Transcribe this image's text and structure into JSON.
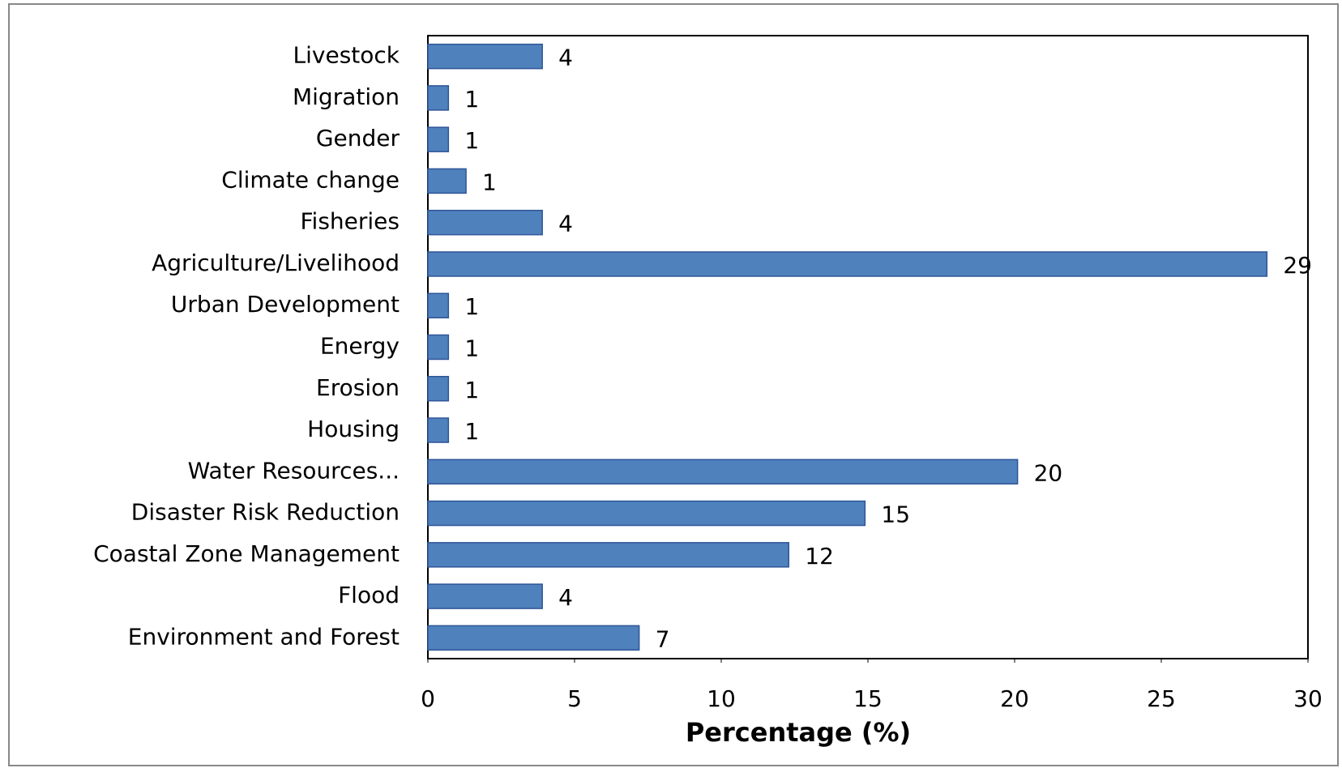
{
  "chart_data": {
    "type": "barh",
    "categories": [
      "Livestock",
      "Migration",
      "Gender",
      "Climate change",
      "Fisheries",
      "Agriculture/Livelihood",
      "Urban Development",
      "Energy",
      "Erosion",
      "Housing",
      "Water Resources...",
      "Disaster Risk Reduction",
      "Coastal Zone Management",
      "Flood",
      "Environment and Forest"
    ],
    "values": [
      3.9,
      0.7,
      0.7,
      1.3,
      3.9,
      28.6,
      0.7,
      0.7,
      0.7,
      0.7,
      20.1,
      14.9,
      12.3,
      3.9,
      7.2
    ],
    "value_labels": [
      "4",
      "1",
      "1",
      "1",
      "4",
      "29",
      "1",
      "1",
      "1",
      "1",
      "20",
      "15",
      "12",
      "4",
      "7"
    ],
    "color": "#4f81bd",
    "xlabel": "Percentage (%)",
    "xlim": [
      0,
      30
    ],
    "xticks": [
      0,
      5,
      10,
      15,
      20,
      25,
      30
    ],
    "grid": false
  }
}
